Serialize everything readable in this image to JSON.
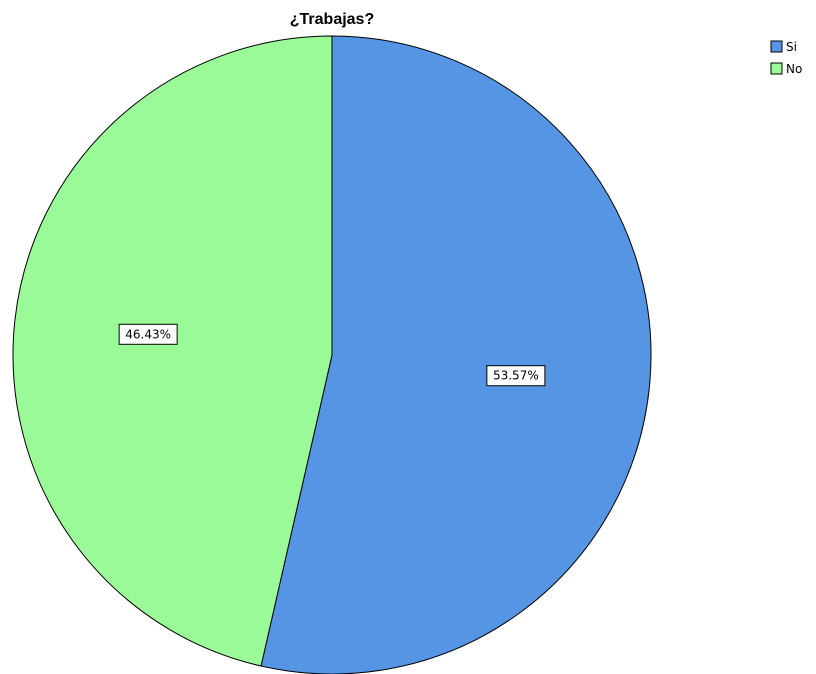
{
  "chart_data": {
    "type": "pie",
    "title": "¿Trabajas?",
    "slices": [
      {
        "label": "Si",
        "value": 53.57,
        "display": "53.57%",
        "color": "#5595e3"
      },
      {
        "label": "No",
        "value": 46.43,
        "display": "46.43%",
        "color": "#9afa98"
      }
    ],
    "legend": {
      "position": "top-right",
      "entries": [
        "Si",
        "No"
      ]
    },
    "start_angle_degrees": 0,
    "direction": "clockwise",
    "outline_color": "#000000"
  }
}
